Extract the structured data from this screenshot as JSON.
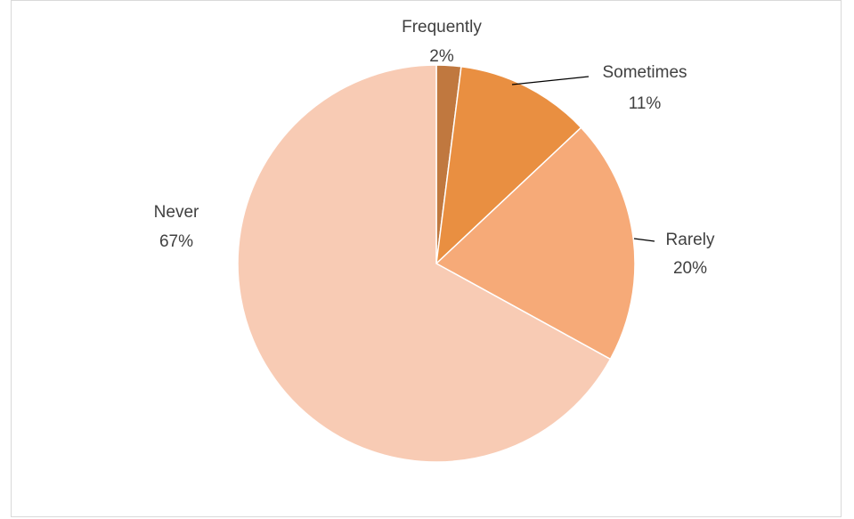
{
  "chart_data": {
    "type": "pie",
    "title": "",
    "slices": [
      {
        "label": "Frequently",
        "value": 2,
        "display": "2%",
        "color": "#c0783f"
      },
      {
        "label": "Sometimes",
        "value": 11,
        "display": "11%",
        "color": "#e98f41"
      },
      {
        "label": "Rarely",
        "value": 20,
        "display": "20%",
        "color": "#f6aa78"
      },
      {
        "label": "Never",
        "value": 67,
        "display": "67%",
        "color": "#f8cbb4"
      }
    ],
    "start_angle_deg": 0,
    "direction": "clockwise",
    "legend": "none",
    "data_labels": "outside"
  }
}
